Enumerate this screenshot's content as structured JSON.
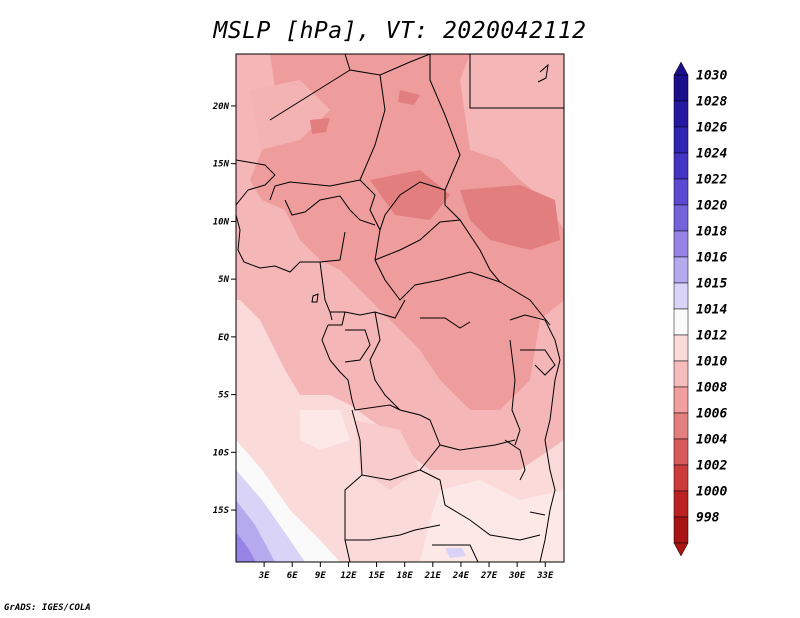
{
  "title": "MSLP [hPa], VT: 2020042112",
  "credit": "GrADS: IGES/COLA",
  "map": {
    "lon_range": [
      0,
      35
    ],
    "lat_range": [
      -19.5,
      24.5
    ],
    "lon_ticks": [
      "3E",
      "6E",
      "9E",
      "12E",
      "15E",
      "18E",
      "21E",
      "24E",
      "27E",
      "30E",
      "33E"
    ],
    "lat_ticks": [
      "20N",
      "15N",
      "10N",
      "5N",
      "EQ",
      "5S",
      "10S",
      "15S"
    ]
  },
  "colorbar": {
    "levels": [
      "1030",
      "1028",
      "1026",
      "1024",
      "1022",
      "1020",
      "1018",
      "1016",
      "1015",
      "1014",
      "1012",
      "1010",
      "1008",
      "1006",
      "1004",
      "1002",
      "1000",
      "998"
    ],
    "colors": [
      "#1b0f8c",
      "#2419a0",
      "#3125b4",
      "#4434c4",
      "#5a4ad2",
      "#7563dc",
      "#9584e6",
      "#b6aaef",
      "#d8d3f7",
      "#fafafa",
      "#fbdada",
      "#f6bcbc",
      "#f09e9e",
      "#e47f7f",
      "#d95a5a",
      "#cd3a3a",
      "#bc2222",
      "#a81414"
    ]
  }
}
